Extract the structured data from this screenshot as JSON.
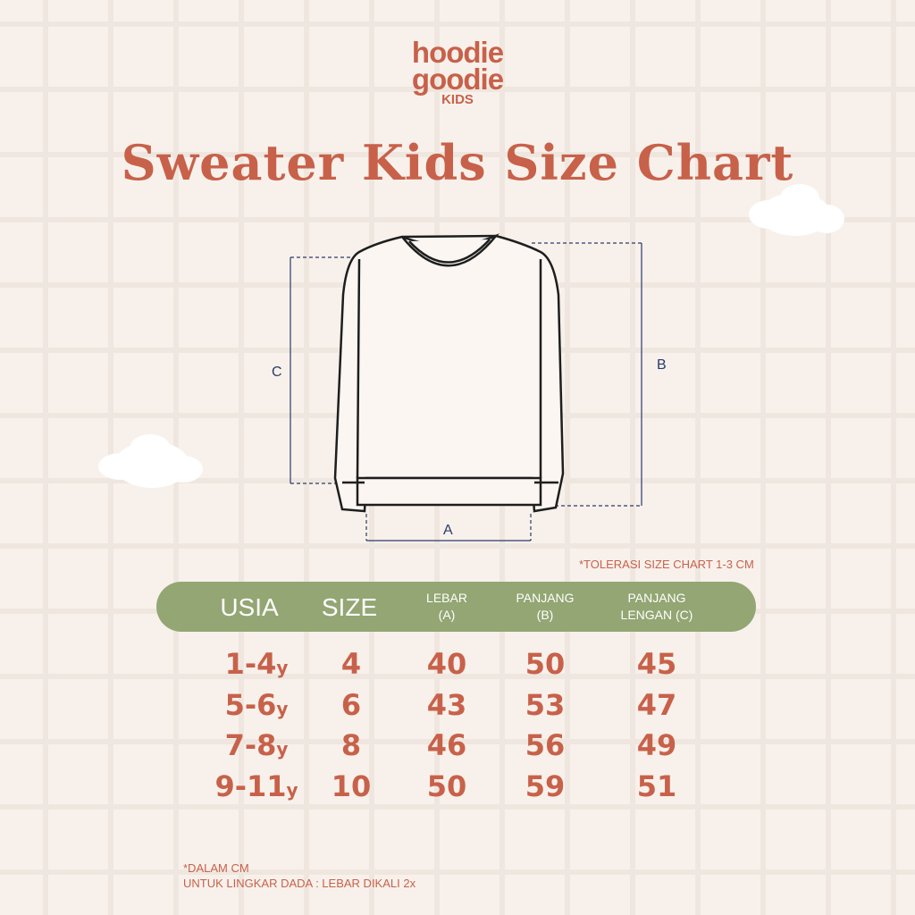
{
  "brand": {
    "line1": "hoodie",
    "line2": "goodie",
    "line3": "KIDS"
  },
  "title": "Sweater Kids Size Chart",
  "diagram": {
    "label_a": "A",
    "label_b": "B",
    "label_c": "C"
  },
  "tolerance_note": "*TOLERASI SIZE CHART 1-3 CM",
  "table": {
    "headers": [
      "USIA",
      "SIZE",
      "LEBAR\n(A)",
      "PANJANG\n(B)",
      "PANJANG\nLENGAN (C)"
    ],
    "header_lines": {
      "lebar": [
        "LEBAR",
        "(A)"
      ],
      "panjang": [
        "PANJANG",
        "(B)"
      ],
      "lengan": [
        "PANJANG",
        "LENGAN (C)"
      ]
    },
    "rows": [
      {
        "age": "1-4",
        "unit": "y",
        "size": "4",
        "lebar": "40",
        "panjang": "50",
        "lengan": "45"
      },
      {
        "age": "5-6",
        "unit": "y",
        "size": "6",
        "lebar": "43",
        "panjang": "53",
        "lengan": "47"
      },
      {
        "age": "7-8",
        "unit": "y",
        "size": "8",
        "lebar": "46",
        "panjang": "56",
        "lengan": "49"
      },
      {
        "age": "9-11",
        "unit": "y",
        "size": "10",
        "lebar": "50",
        "panjang": "59",
        "lengan": "51"
      }
    ]
  },
  "notes": [
    "*DALAM CM",
    "UNTUK LINGKAR DADA : LEBAR DIKALI 2x"
  ],
  "colors": {
    "text": "#c8614a",
    "header": "#93a673",
    "background": "#f8f1eb",
    "dimension": "#2b3a6b"
  }
}
